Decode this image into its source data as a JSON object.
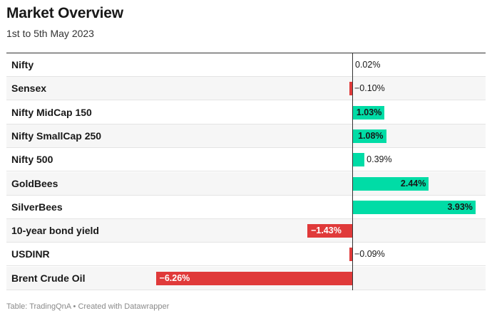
{
  "header": {
    "title": "Market Overview",
    "subtitle": "1st to 5th May 2023"
  },
  "footer": {
    "text": "Table: TradingQnA • Created with Datawrapper"
  },
  "colors": {
    "positive": "#00dca6",
    "negative": "#e03a3a",
    "text": "#181818",
    "white_text": "#ffffff"
  },
  "chart_data": {
    "type": "table",
    "value_unit": "%",
    "rows": [
      {
        "label": "Nifty",
        "value": 0.02,
        "display": "0.02%"
      },
      {
        "label": "Sensex",
        "value": -0.1,
        "display": "−0.10%"
      },
      {
        "label": "Nifty MidCap 150",
        "value": 1.03,
        "display": "1.03%"
      },
      {
        "label": "Nifty SmallCap 250",
        "value": 1.08,
        "display": "1.08%"
      },
      {
        "label": "Nifty 500",
        "value": 0.39,
        "display": "0.39%"
      },
      {
        "label": "GoldBees",
        "value": 2.44,
        "display": "2.44%"
      },
      {
        "label": "SilverBees",
        "value": 3.93,
        "display": "3.93%"
      },
      {
        "label": "10-year bond yield",
        "value": -1.43,
        "display": "−1.43%"
      },
      {
        "label": "USDINR",
        "value": -0.09,
        "display": "−0.09%"
      },
      {
        "label": "Brent Crude Oil",
        "value": -6.26,
        "display": "−6.26%"
      }
    ]
  }
}
